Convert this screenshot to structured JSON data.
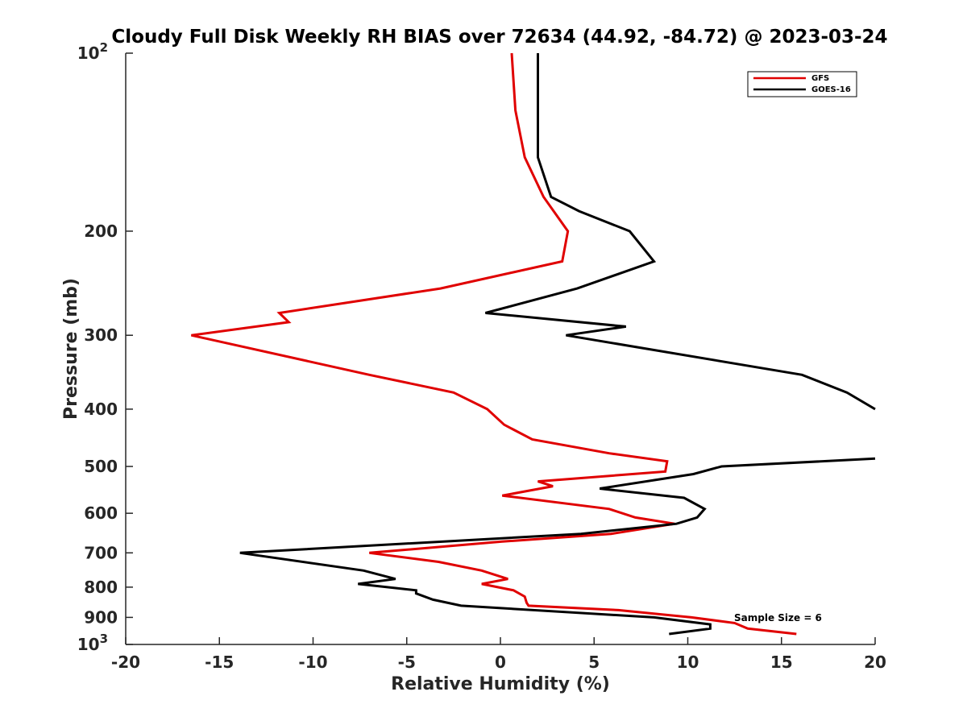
{
  "chart_data": {
    "type": "line",
    "title": "Cloudy Full Disk Weekly RH BIAS over 72634 (44.92, -84.72) @ 2023-03-24",
    "xlabel": "Relative Humidity (%)",
    "ylabel": "Pressure (mb)",
    "xlim": [
      -20,
      20
    ],
    "ylim": [
      100,
      1000
    ],
    "y_scale": "log",
    "y_reversed": true,
    "grid": false,
    "legend_position": "top-right",
    "x_ticks": [
      "-20",
      "-15",
      "-10",
      "-5",
      "0",
      "5",
      "10",
      "15",
      "20"
    ],
    "y_ticks": [
      {
        "value": 100,
        "base": "10",
        "exp": "2"
      },
      {
        "value": 200,
        "label": "200"
      },
      {
        "value": 300,
        "label": "300"
      },
      {
        "value": 400,
        "label": "400"
      },
      {
        "value": 500,
        "label": "500"
      },
      {
        "value": 600,
        "label": "600"
      },
      {
        "value": 700,
        "label": "700"
      },
      {
        "value": 800,
        "label": "800"
      },
      {
        "value": 900,
        "label": "900"
      },
      {
        "value": 1000,
        "base": "10",
        "exp": "3"
      }
    ],
    "series": [
      {
        "name": "GFS",
        "color": "#e00000",
        "points": [
          [
            0.6,
            100
          ],
          [
            0.8,
            125
          ],
          [
            1.3,
            150
          ],
          [
            2.3,
            175
          ],
          [
            3.6,
            200
          ],
          [
            3.3,
            225
          ],
          [
            -3.2,
            250
          ],
          [
            -11.8,
            275
          ],
          [
            -11.3,
            285
          ],
          [
            -16.5,
            300
          ],
          [
            -7.0,
            350
          ],
          [
            -2.5,
            375
          ],
          [
            -0.7,
            400
          ],
          [
            0.2,
            425
          ],
          [
            1.7,
            450
          ],
          [
            5.8,
            475
          ],
          [
            8.9,
            490
          ],
          [
            8.8,
            510
          ],
          [
            2.0,
            530
          ],
          [
            2.8,
            540
          ],
          [
            0.1,
            560
          ],
          [
            5.8,
            590
          ],
          [
            7.2,
            610
          ],
          [
            9.3,
            625
          ],
          [
            5.9,
            650
          ],
          [
            0.1,
            670
          ],
          [
            -7.0,
            700
          ],
          [
            -3.3,
            725
          ],
          [
            -1.0,
            750
          ],
          [
            0.4,
            775
          ],
          [
            -1.0,
            790
          ],
          [
            0.7,
            810
          ],
          [
            1.3,
            830
          ],
          [
            1.4,
            850
          ],
          [
            1.5,
            860
          ],
          [
            6.3,
            875
          ],
          [
            10.2,
            900
          ],
          [
            12.5,
            920
          ],
          [
            13.2,
            940
          ],
          [
            15.8,
            960
          ]
        ]
      },
      {
        "name": "GOES-16",
        "color": "#000000",
        "points": [
          [
            2.0,
            100
          ],
          [
            2.0,
            125
          ],
          [
            2.0,
            150
          ],
          [
            2.7,
            175
          ],
          [
            4.2,
            185
          ],
          [
            6.9,
            200
          ],
          [
            8.2,
            225
          ],
          [
            4.1,
            250
          ],
          [
            -0.8,
            275
          ],
          [
            6.7,
            290
          ],
          [
            3.5,
            300
          ],
          [
            16.1,
            350
          ],
          [
            18.5,
            375
          ],
          [
            20.0,
            400
          ],
          [
            null,
            null
          ],
          [
            20.0,
            485
          ],
          [
            11.8,
            500
          ],
          [
            10.3,
            515
          ],
          [
            5.3,
            545
          ],
          [
            9.8,
            565
          ],
          [
            10.9,
            590
          ],
          [
            10.5,
            610
          ],
          [
            9.4,
            625
          ],
          [
            4.3,
            650
          ],
          [
            -13.9,
            700
          ],
          [
            -7.3,
            750
          ],
          [
            -5.6,
            775
          ],
          [
            -7.6,
            790
          ],
          [
            -4.5,
            810
          ],
          [
            -4.5,
            820
          ],
          [
            -3.6,
            840
          ],
          [
            -2.1,
            860
          ],
          [
            8.2,
            900
          ],
          [
            11.2,
            925
          ],
          [
            11.2,
            940
          ],
          [
            9.0,
            960
          ]
        ]
      }
    ],
    "annotations": [
      {
        "text": "Sample Size = 6",
        "x": 12.5,
        "y": 900
      }
    ]
  }
}
